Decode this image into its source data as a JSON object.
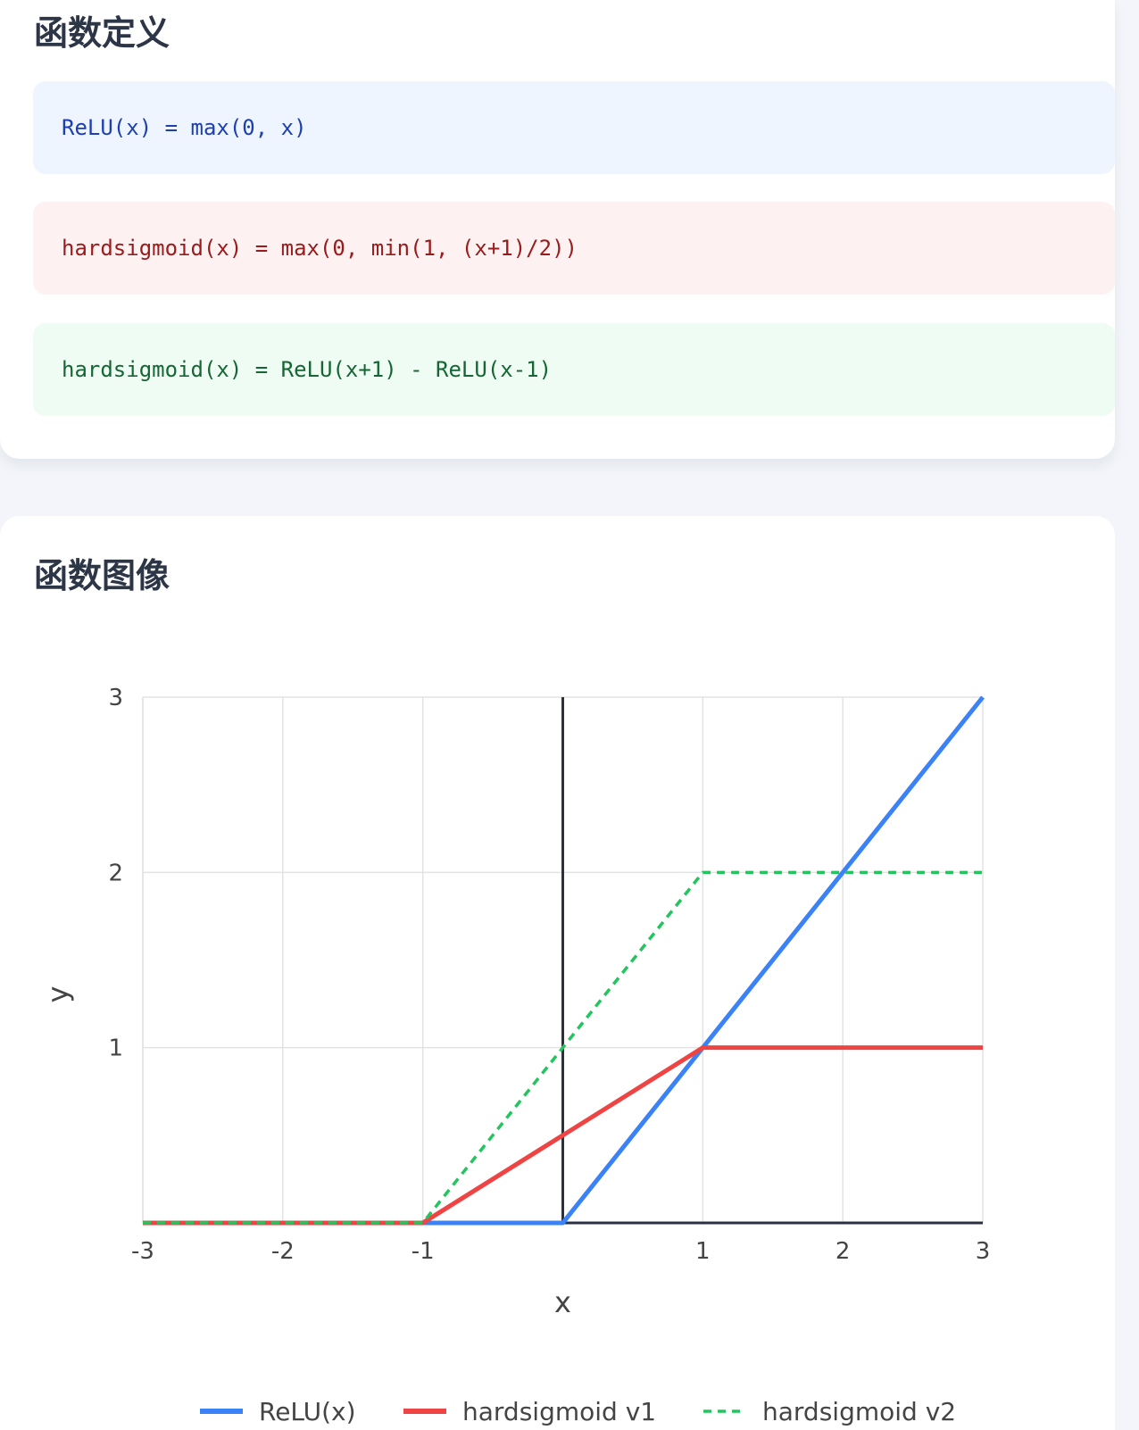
{
  "definitions": {
    "title": "函数定义",
    "formulas": [
      "ReLU(x) = max(0, x)",
      "hardsigmoid(x) = max(0, min(1, (x+1)/2))",
      "hardsigmoid(x) = ReLU(x+1) - ReLU(x-1)"
    ]
  },
  "graph": {
    "title": "函数图像"
  },
  "colors": {
    "relu": "#3b82f6",
    "hs1": "#ef4444",
    "hs2": "#22c55e",
    "axis": "#2b3140",
    "grid": "#e3e3e3",
    "text": "#444444"
  },
  "chart_data": {
    "type": "line",
    "xlabel": "x",
    "ylabel": "y",
    "xlim": [
      -3,
      3
    ],
    "ylim": [
      0,
      3
    ],
    "xticks": [
      -3,
      -2,
      -1,
      1,
      2,
      3
    ],
    "yticks": [
      1,
      2,
      3
    ],
    "grid": true,
    "legend_position": "bottom",
    "series": [
      {
        "name": "ReLU(x)",
        "style": "solid",
        "x": [
          -3,
          -1,
          0,
          1,
          2,
          3
        ],
        "y": [
          0,
          0,
          0,
          1,
          2,
          3
        ]
      },
      {
        "name": "hardsigmoid v1",
        "style": "solid",
        "x": [
          -3,
          -1,
          0,
          1,
          3
        ],
        "y": [
          0,
          0,
          0.5,
          1,
          1
        ]
      },
      {
        "name": "hardsigmoid v2",
        "style": "dashed",
        "x": [
          -3,
          -1,
          0,
          1,
          3
        ],
        "y": [
          0,
          0,
          1,
          2,
          2
        ]
      }
    ]
  }
}
